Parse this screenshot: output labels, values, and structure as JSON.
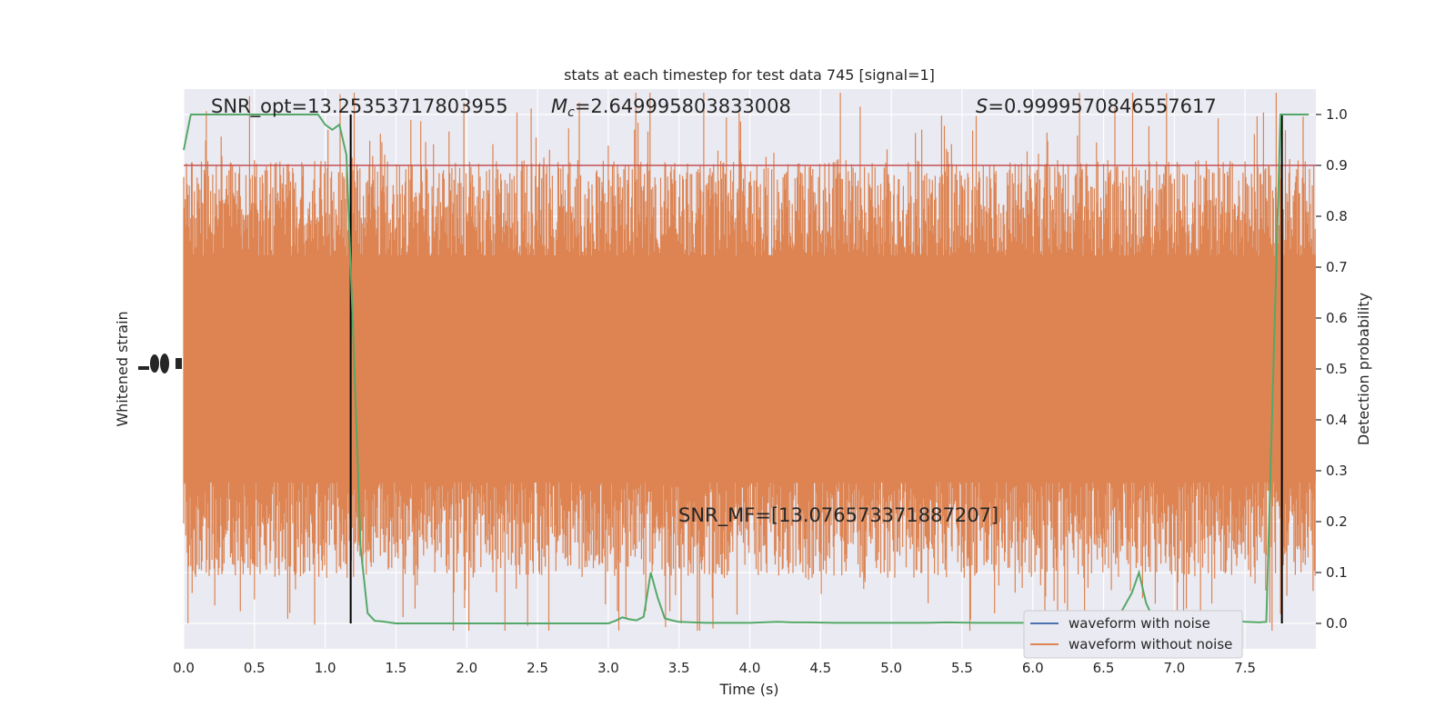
{
  "chart_data": {
    "type": "line",
    "title": "stats at each timestep for test data 745 [signal=1]",
    "xlabel": "Time (s)",
    "ylabel_left": "Whitened strain",
    "ylabel_right": "Detection probability",
    "xlim": [
      0.0,
      8.0
    ],
    "ylim_right": [
      -0.05,
      1.05
    ],
    "x_ticks": [
      "0.0",
      "0.5",
      "1.0",
      "1.5",
      "2.0",
      "2.5",
      "3.0",
      "3.5",
      "4.0",
      "4.5",
      "5.0",
      "5.5",
      "6.0",
      "6.5",
      "7.0",
      "7.5"
    ],
    "y_ticks_right": [
      "0.0",
      "0.1",
      "0.2",
      "0.3",
      "0.4",
      "0.5",
      "0.6",
      "0.7",
      "0.8",
      "0.9",
      "1.0"
    ],
    "grid": true,
    "legend_placement": "lower-right",
    "colors": {
      "background": "#eaeaf2",
      "grid": "#ffffff",
      "with_noise": "#4c72b0",
      "without_noise": "#dd8452",
      "probability": "#55a868",
      "threshold": "#c44e52",
      "markers": "#000000"
    },
    "series": [
      {
        "name": "waveform with noise",
        "description_only": false,
        "x": [],
        "y": []
      },
      {
        "name": "waveform without noise",
        "x": [],
        "y": []
      }
    ],
    "detection_probability": {
      "x": [
        0.0,
        0.05,
        0.1,
        0.15,
        0.2,
        0.25,
        0.3,
        0.35,
        0.4,
        0.45,
        0.5,
        0.55,
        0.6,
        0.65,
        0.7,
        0.75,
        0.8,
        0.85,
        0.9,
        0.95,
        1.0,
        1.05,
        1.1,
        1.15,
        1.2,
        1.25,
        1.3,
        1.35,
        1.4,
        1.5,
        1.6,
        1.8,
        2.0,
        2.2,
        2.4,
        2.6,
        2.8,
        3.0,
        3.05,
        3.1,
        3.15,
        3.2,
        3.25,
        3.3,
        3.35,
        3.4,
        3.45,
        3.5,
        3.6,
        3.7,
        3.8,
        4.0,
        4.2,
        4.3,
        4.4,
        4.6,
        4.8,
        5.0,
        5.2,
        5.4,
        5.6,
        5.8,
        6.0,
        6.2,
        6.4,
        6.6,
        6.7,
        6.75,
        6.8,
        6.85,
        6.9,
        6.95,
        7.0,
        7.1,
        7.2,
        7.3,
        7.4,
        7.5,
        7.6,
        7.65,
        7.7,
        7.75,
        7.8,
        7.85,
        7.9,
        7.95
      ],
      "y": [
        0.93,
        1.0,
        1.0,
        1.0,
        1.0,
        1.0,
        1.0,
        1.0,
        1.0,
        1.0,
        1.0,
        1.0,
        1.0,
        1.0,
        1.0,
        1.0,
        1.0,
        1.0,
        1.0,
        1.0,
        0.98,
        0.97,
        0.98,
        0.92,
        0.55,
        0.15,
        0.02,
        0.005,
        0.004,
        0.0,
        0.0,
        0.0,
        0.0,
        0.0,
        0.0,
        0.0,
        0.0,
        0.0,
        0.005,
        0.012,
        0.008,
        0.006,
        0.013,
        0.1,
        0.05,
        0.01,
        0.006,
        0.003,
        0.002,
        0.001,
        0.001,
        0.001,
        0.003,
        0.002,
        0.002,
        0.001,
        0.001,
        0.001,
        0.001,
        0.002,
        0.001,
        0.001,
        0.001,
        0.001,
        0.001,
        0.01,
        0.06,
        0.1,
        0.04,
        0.01,
        0.005,
        0.002,
        0.001,
        0.001,
        0.002,
        0.004,
        0.006,
        0.003,
        0.002,
        0.003,
        0.5,
        1.0,
        1.0,
        1.0,
        1.0,
        1.0
      ]
    },
    "threshold": 0.9,
    "markers_x": [
      1.18,
      7.76
    ],
    "annotations": {
      "snr_opt": "SNR_opt=13.25353717803955",
      "mc": "=2.649995803833008",
      "mc_symbol": "M",
      "mc_subscript": "c",
      "s_value": "=0.9999570846557617",
      "s_symbol": "S",
      "snr_mf": "SNR_MF=[13.076573371887207]"
    }
  }
}
